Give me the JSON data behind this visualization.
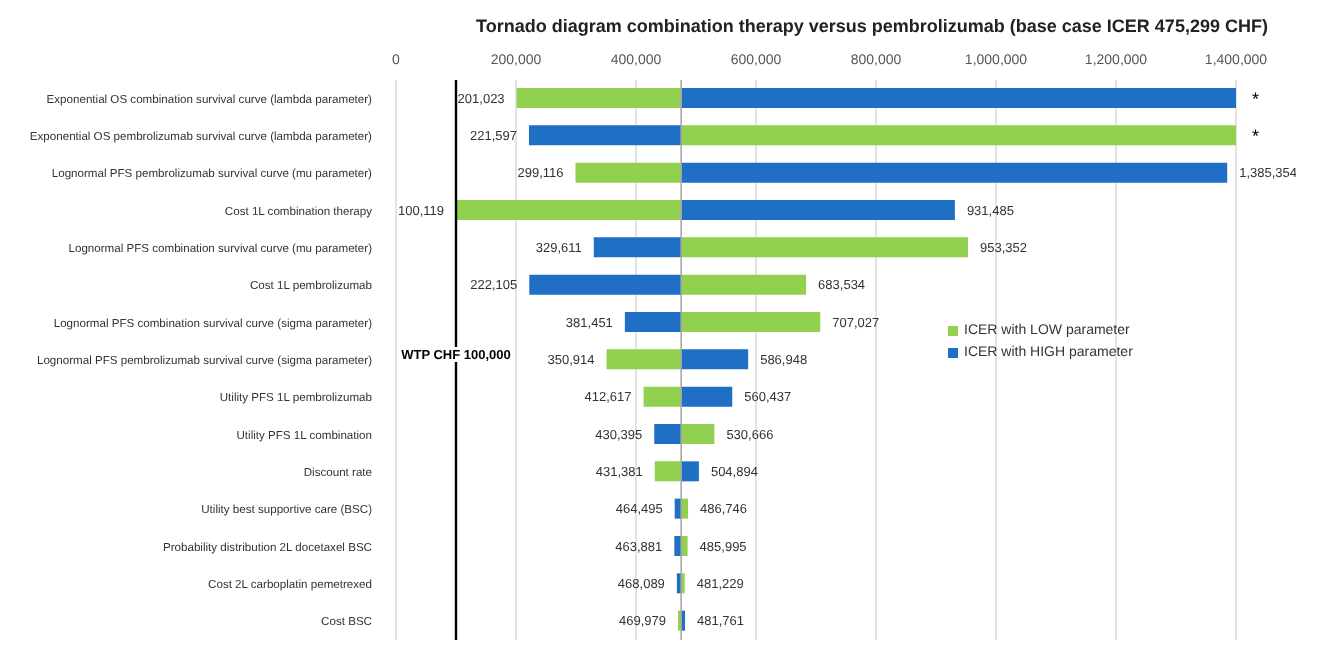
{
  "chart_data": {
    "type": "bar",
    "orientation": "horizontal",
    "title": "Tornado diagram combination therapy versus pembrolizumab (base case ICER 475,299 CHF)",
    "categories": [
      "Exponential OS combination survival curve (lambda parameter)",
      "Exponential OS pembrolizumab survival curve (lambda parameter)",
      "Lognormal PFS pembrolizumab survival curve (mu parameter)",
      "Cost 1L combination therapy",
      "Lognormal PFS combination survival curve (mu parameter)",
      "Cost 1L pembrolizumab",
      "Lognormal PFS combination survival curve (sigma parameter)",
      "Lognormal PFS pembrolizumab survival curve (sigma parameter)",
      "Utility PFS 1L pembrolizumab",
      "Utility PFS 1L combination",
      "Discount rate",
      "Utility best supportive care (BSC)",
      "Probability distribution 2L docetaxel BSC",
      "Cost 2L carboplatin pemetrexed",
      "Cost BSC"
    ],
    "series": [
      {
        "name": "ICER with LOW parameter",
        "color": "#92d050",
        "base": [
          475299,
          475299,
          475299,
          475299,
          475299,
          475299,
          475299,
          475299,
          475299,
          475299,
          475299,
          475299,
          475299,
          475299,
          475299
        ],
        "values": [
          -274276,
          924701,
          -176183,
          -375180,
          478053,
          208235,
          231728,
          -124385,
          -62682,
          55367,
          -43918,
          11447,
          10696,
          5930,
          -5320
        ],
        "value_labels": [
          "201,023",
          null,
          "299,116",
          "100,119",
          "953,352",
          "683,534",
          "707,027",
          "350,914",
          "412,617",
          "530,666",
          "431,381",
          "486,746",
          "485,995",
          "481,229",
          "469,979"
        ]
      },
      {
        "name": "ICER with HIGH parameter",
        "color": "#1f6fc4",
        "base": [
          475299,
          475299,
          475299,
          475299,
          475299,
          475299,
          475299,
          475299,
          475299,
          475299,
          475299,
          475299,
          475299,
          475299,
          475299
        ],
        "values": [
          924701,
          -253702,
          910055,
          456186,
          -145688,
          -253194,
          -93848,
          111649,
          85138,
          -44904,
          29595,
          -10804,
          -11418,
          -7210,
          6462
        ],
        "value_labels": [
          null,
          "221,597",
          "1,385,354",
          "931,485",
          "329,611",
          "222,105",
          "381,451",
          "586,948",
          "560,437",
          "430,395",
          "504,894",
          "464,495",
          "463,881",
          "468,089",
          "481,761"
        ]
      }
    ],
    "xlim": [
      0,
      1400000
    ],
    "xticks": [
      0,
      {
        "value": 200000,
        "label": "200,000"
      },
      {
        "value": 400000,
        "label": "400,000"
      },
      {
        "value": 600000,
        "label": "600,000"
      },
      {
        "value": 800000,
        "label": "800,000"
      },
      {
        "value": 1000000,
        "label": "1,000,000"
      },
      {
        "value": 1200000,
        "label": "1,200,000"
      },
      {
        "value": 1400000,
        "label": "1,400,000"
      }
    ],
    "grid": "x",
    "legend": "right",
    "ref_lines": [
      {
        "axis": "x",
        "value": 100000,
        "label": "WTP CHF 100,000",
        "color": "#000000"
      },
      {
        "axis": "x",
        "value": 475299,
        "label": null,
        "color": "#a6a6a6"
      }
    ],
    "annotations": [
      {
        "text": "*",
        "x": 1400000,
        "y": "Exponential OS combination survival curve (lambda parameter)"
      },
      {
        "text": "*",
        "x": 1400000,
        "y": "Exponential OS pembrolizumab survival curve (lambda parameter)"
      }
    ]
  }
}
